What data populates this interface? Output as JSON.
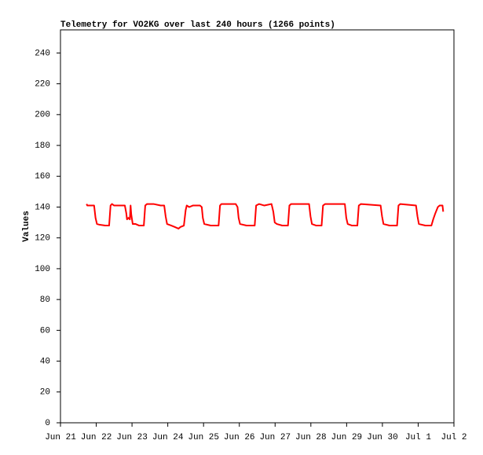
{
  "chart_data": {
    "type": "line",
    "title": "Telemetry for VO2KG over last 240 hours (1266 points)",
    "y_label": "Values",
    "xlim": [
      0,
      11
    ],
    "xticks": [
      {
        "value": 0,
        "label": "Jun 21"
      },
      {
        "value": 1,
        "label": "Jun 22"
      },
      {
        "value": 2,
        "label": "Jun 23"
      },
      {
        "value": 3,
        "label": "Jun 24"
      },
      {
        "value": 4,
        "label": "Jun 25"
      },
      {
        "value": 5,
        "label": "Jun 26"
      },
      {
        "value": 6,
        "label": "Jun 27"
      },
      {
        "value": 7,
        "label": "Jun 28"
      },
      {
        "value": 8,
        "label": "Jun 29"
      },
      {
        "value": 9,
        "label": "Jun 30"
      },
      {
        "value": 10,
        "label": "Jul 1"
      },
      {
        "value": 11,
        "label": "Jul 2"
      }
    ],
    "ylim": [
      0,
      255
    ],
    "yticks": [
      0,
      20,
      40,
      60,
      80,
      100,
      120,
      140,
      160,
      180,
      200,
      220,
      240
    ],
    "grid": false,
    "series": [
      {
        "color": "#ff0000",
        "x": [
          0.73,
          0.75,
          0.94,
          0.98,
          1.02,
          1.1,
          1.25,
          1.36,
          1.4,
          1.44,
          1.5,
          1.8,
          1.84,
          1.86,
          1.9,
          1.94,
          1.96,
          1.98,
          2.02,
          2.1,
          2.2,
          2.33,
          2.37,
          2.42,
          2.6,
          2.8,
          2.9,
          2.94,
          2.98,
          3.1,
          3.2,
          3.3,
          3.35,
          3.45,
          3.5,
          3.53,
          3.6,
          3.7,
          3.9,
          3.95,
          3.98,
          4.02,
          4.2,
          4.42,
          4.46,
          4.5,
          4.9,
          4.95,
          4.98,
          5.02,
          5.2,
          5.43,
          5.47,
          5.55,
          5.7,
          5.9,
          5.95,
          5.99,
          6.05,
          6.2,
          6.36,
          6.4,
          6.45,
          6.95,
          6.99,
          7.03,
          7.15,
          7.3,
          7.34,
          7.4,
          7.95,
          7.99,
          8.03,
          8.15,
          8.3,
          8.34,
          8.4,
          8.95,
          8.99,
          9.03,
          9.2,
          9.41,
          9.45,
          9.5,
          9.94,
          9.98,
          10.02,
          10.2,
          10.37,
          10.42,
          10.48,
          10.55,
          10.6,
          10.68,
          10.7
        ],
        "values": [
          142,
          141,
          141,
          133,
          129,
          128.5,
          128,
          128,
          141,
          142,
          141,
          141,
          136,
          132,
          133,
          132,
          141,
          135,
          129,
          129,
          128,
          128,
          141,
          142,
          142,
          141,
          141,
          134,
          129,
          128,
          127,
          126,
          127,
          128,
          138,
          141,
          140,
          141,
          141,
          140,
          133,
          129,
          128,
          128,
          141,
          142,
          142,
          140,
          133,
          129,
          128,
          128,
          141,
          142,
          141,
          142,
          137,
          130,
          129,
          128,
          128,
          141,
          142,
          142,
          134,
          129,
          128,
          128,
          141,
          142,
          142,
          133,
          129,
          128,
          128,
          141,
          142,
          141,
          134,
          129,
          128,
          128,
          141,
          142,
          141,
          134,
          129,
          128,
          128,
          132,
          136,
          140,
          141,
          141,
          137
        ]
      }
    ]
  }
}
